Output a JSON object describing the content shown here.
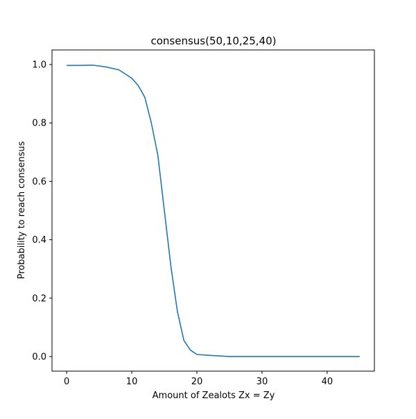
{
  "chart_data": {
    "type": "line",
    "title": "consensus(50,10,25,40)",
    "xlabel": "Amount of Zealots Zx = Zy",
    "ylabel": "Probability to reach consensus",
    "xlim": [
      -2.25,
      47.25
    ],
    "ylim": [
      -0.05,
      1.05
    ],
    "x_ticks": [
      0,
      10,
      20,
      30,
      40
    ],
    "y_ticks": [
      0.0,
      0.2,
      0.4,
      0.6,
      0.8,
      1.0
    ],
    "x_tick_labels": [
      "0",
      "10",
      "20",
      "30",
      "40"
    ],
    "y_tick_labels": [
      "0.0",
      "0.2",
      "0.4",
      "0.6",
      "0.8",
      "1.0"
    ],
    "grid": false,
    "line_color": "#1f77b4",
    "series": [
      {
        "x": [
          0,
          2,
          4,
          6,
          8,
          10,
          11,
          12,
          13,
          14,
          15,
          16,
          17,
          18,
          19,
          20,
          22,
          25,
          30,
          35,
          40,
          45
        ],
        "values": [
          0.997,
          0.997,
          0.998,
          0.992,
          0.982,
          0.953,
          0.928,
          0.888,
          0.8,
          0.69,
          0.5,
          0.31,
          0.155,
          0.055,
          0.022,
          0.007,
          0.004,
          0.0,
          0.0,
          0.0,
          0.0,
          0.0
        ]
      }
    ]
  }
}
